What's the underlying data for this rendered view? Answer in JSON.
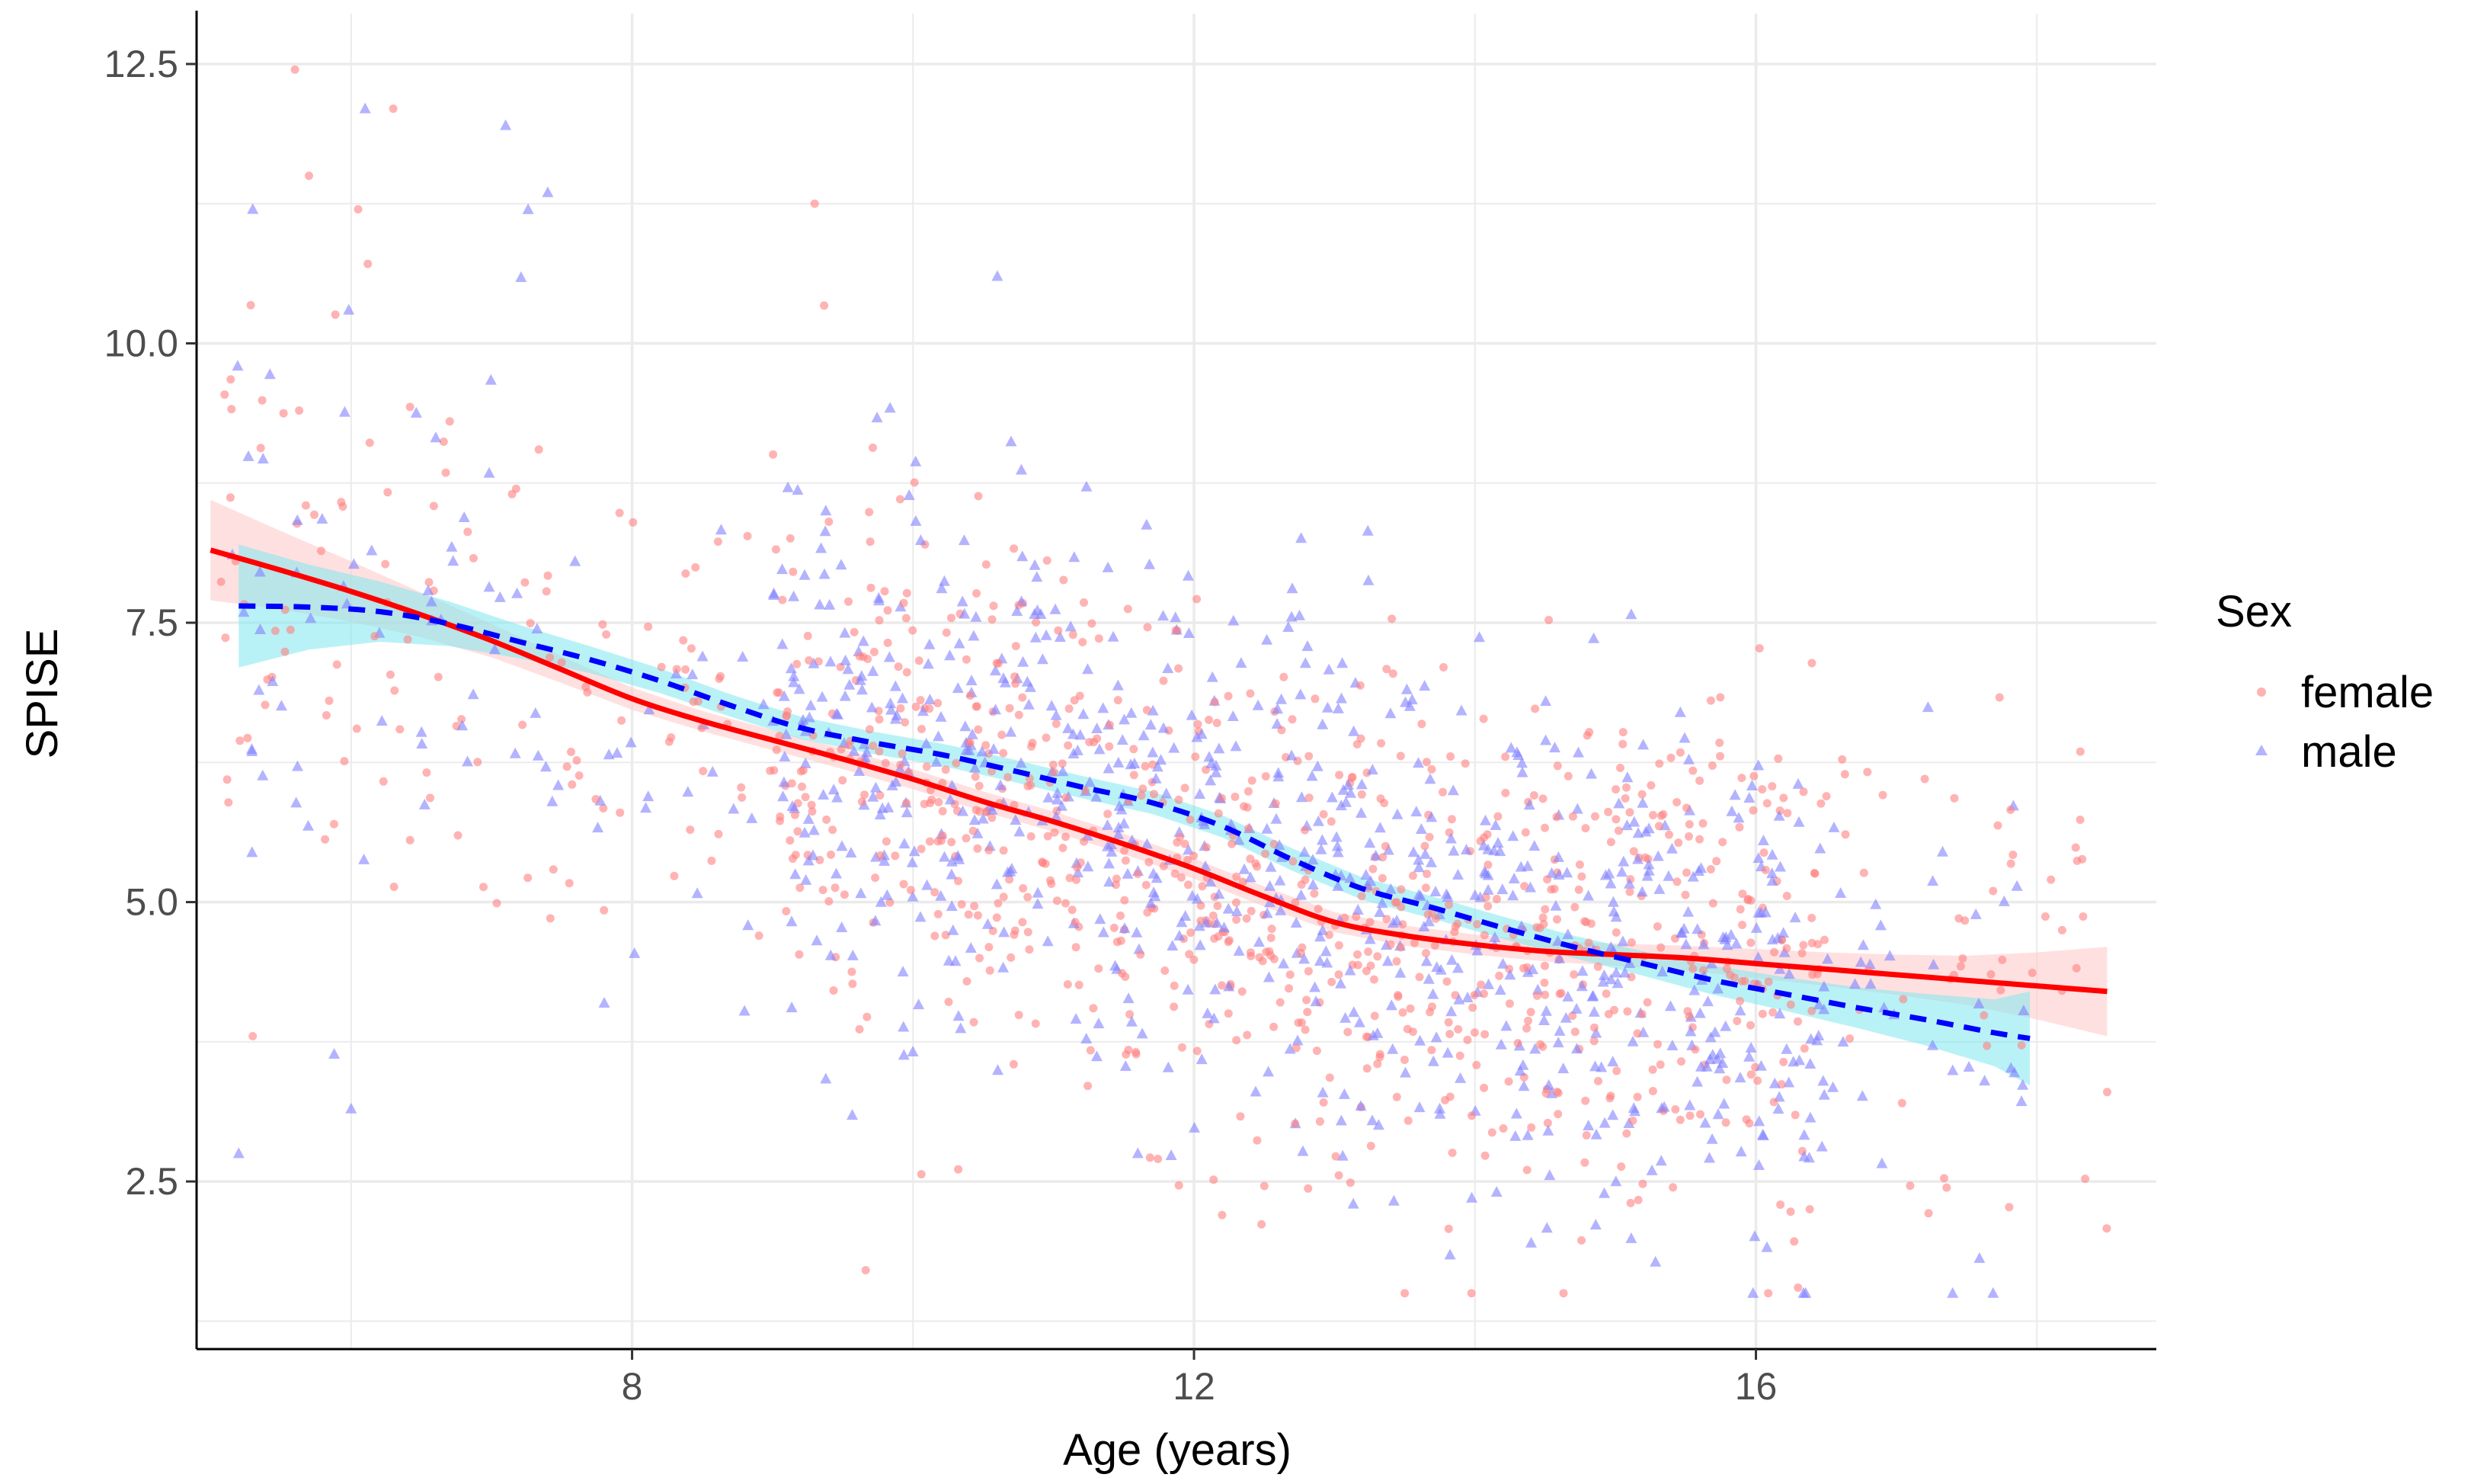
{
  "chart_data": {
    "type": "scatter",
    "title": "",
    "xlabel": "Age (years)",
    "ylabel": "SPISE",
    "xlim": [
      4.9,
      18.85
    ],
    "ylim": [
      1.0,
      12.95
    ],
    "x_ticks": [
      8,
      12,
      16
    ],
    "x_tick_labels": [
      "8",
      "12",
      "16"
    ],
    "y_ticks": [
      2.5,
      5.0,
      7.5,
      10.0,
      12.5
    ],
    "y_tick_labels": [
      "2.5",
      "5.0",
      "7.5",
      "10.0",
      "12.5"
    ],
    "grid": true,
    "legend": {
      "title": "Sex",
      "position": "right",
      "entries": [
        "female",
        "male"
      ]
    },
    "colors": {
      "female_points": "#ff8080",
      "male_points": "#8080ff",
      "female_line": "#ff0000",
      "male_line": "#0000ff",
      "female_band": "#ffcccc",
      "male_band": "#80e8ee",
      "grid": "#ebebeb",
      "axis": "#000000"
    },
    "series": [
      {
        "name": "female",
        "marker": "circle",
        "smooth_x": [
          5.0,
          5.5,
          6.0,
          6.5,
          7.0,
          7.5,
          8.0,
          8.5,
          9.0,
          9.5,
          10.0,
          10.5,
          11.0,
          11.5,
          12.0,
          12.5,
          13.0,
          13.5,
          14.0,
          14.5,
          15.0,
          15.5,
          16.0,
          16.5,
          17.0,
          17.5,
          18.0,
          18.5
        ],
        "smooth_y": [
          8.15,
          7.97,
          7.78,
          7.57,
          7.34,
          7.08,
          6.82,
          6.62,
          6.45,
          6.28,
          6.1,
          5.9,
          5.72,
          5.52,
          5.3,
          5.05,
          4.82,
          4.7,
          4.62,
          4.56,
          4.53,
          4.5,
          4.45,
          4.4,
          4.35,
          4.3,
          4.25,
          4.2
        ],
        "band_halfwidth": [
          0.45,
          0.35,
          0.27,
          0.2,
          0.15,
          0.12,
          0.1,
          0.09,
          0.09,
          0.09,
          0.09,
          0.09,
          0.09,
          0.09,
          0.09,
          0.09,
          0.09,
          0.09,
          0.09,
          0.09,
          0.1,
          0.11,
          0.13,
          0.15,
          0.18,
          0.22,
          0.3,
          0.4
        ]
      },
      {
        "name": "male",
        "marker": "triangle",
        "smooth_x": [
          5.2,
          5.7,
          6.2,
          6.7,
          7.2,
          7.7,
          8.2,
          8.7,
          9.2,
          9.7,
          10.2,
          10.7,
          11.2,
          11.7,
          12.2,
          12.7,
          13.2,
          13.7,
          14.2,
          14.7,
          15.2,
          15.7,
          16.2,
          16.7,
          17.2,
          17.7,
          17.95
        ],
        "smooth_y": [
          7.65,
          7.64,
          7.6,
          7.49,
          7.33,
          7.17,
          6.98,
          6.76,
          6.56,
          6.43,
          6.32,
          6.18,
          6.03,
          5.89,
          5.68,
          5.38,
          5.12,
          4.95,
          4.77,
          4.6,
          4.45,
          4.3,
          4.18,
          4.06,
          3.95,
          3.83,
          3.78
        ],
        "band_halfwidth": [
          0.55,
          0.38,
          0.27,
          0.2,
          0.15,
          0.12,
          0.11,
          0.1,
          0.1,
          0.1,
          0.1,
          0.1,
          0.1,
          0.1,
          0.1,
          0.1,
          0.1,
          0.1,
          0.1,
          0.1,
          0.11,
          0.13,
          0.15,
          0.18,
          0.23,
          0.3,
          0.42
        ]
      }
    ],
    "scatter_points": {
      "female": {
        "count": 1050,
        "x_range": [
          5.05,
          18.5
        ],
        "y_min": 1.5,
        "y_max": 12.5,
        "highlights": [
          [
            5.6,
            12.45
          ],
          [
            6.3,
            12.1
          ],
          [
            5.7,
            11.5
          ],
          [
            6.05,
            11.2
          ],
          [
            9.3,
            11.25
          ],
          [
            13.5,
            1.5
          ],
          [
            16.3,
            1.55
          ],
          [
            5.3,
            3.8
          ],
          [
            12.2,
            2.2
          ],
          [
            18.5,
            3.3
          ]
        ]
      },
      "male": {
        "count": 950,
        "x_range": [
          5.15,
          18.0
        ],
        "y_min": 1.5,
        "y_max": 12.1,
        "highlights": [
          [
            6.1,
            12.1
          ],
          [
            7.1,
            11.95
          ],
          [
            5.3,
            11.2
          ],
          [
            7.4,
            11.35
          ],
          [
            10.6,
            10.6
          ],
          [
            5.2,
            2.75
          ],
          [
            6.0,
            3.15
          ],
          [
            11.6,
            2.75
          ],
          [
            14.4,
            1.95
          ],
          [
            17.4,
            1.5
          ]
        ]
      }
    }
  }
}
